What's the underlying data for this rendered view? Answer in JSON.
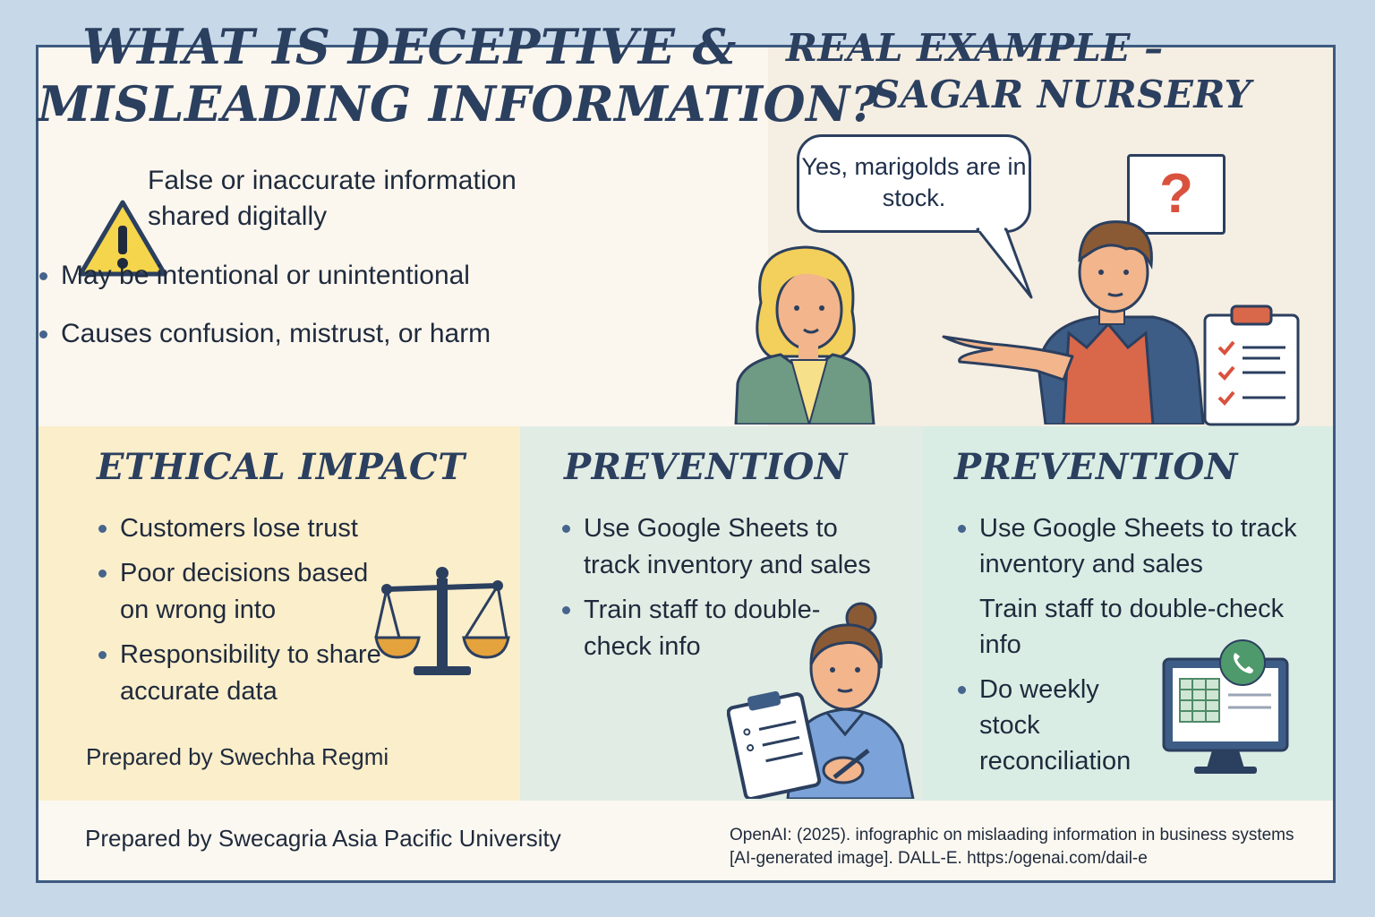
{
  "main": {
    "title_line1": "WHAT IS DECEPTIVE &",
    "title_line2": "MISLEADING INFORMATION?",
    "warning_text": "False or inaccurate information shared digitally",
    "bullets": [
      "May be intentional or unintentional",
      "Causes confusion, mistrust, or harm"
    ]
  },
  "example": {
    "title_line1": "REAL EXAMPLE –",
    "title_line2": "SAGAR NURSERY",
    "speech": "Yes, marigolds are in stock.",
    "question_mark": "?"
  },
  "ethical": {
    "title": "ETHICAL IMPACT",
    "bullets": [
      "Customers lose trust",
      "Poor decisions based on wrong into",
      "Responsibility to share accurate data"
    ],
    "prepared": "Prepared by Swechha Regmi"
  },
  "prevention1": {
    "title": "PREVENTION",
    "bullets": [
      "Use Google Sheets to track inventory and sales",
      "Train staff to double-check info"
    ]
  },
  "prevention2": {
    "title": "PREVENTION",
    "items": [
      "Use Google Sheets to track inventory and sales",
      "Train staff to double-check info",
      "Do weekly stock reconciliation"
    ]
  },
  "footer": {
    "prepared": "Prepared by Swecagria Asia Pacific University",
    "citation": "OpenAI: (2025). infographic on mislaading information in business systems [AI-generated image]. DALL-E. https:/ogenai.com/dail-e"
  },
  "colors": {
    "background": "#c7d8e8",
    "frame": "#3d5a80",
    "title": "#2b3f5f",
    "warning": "#f4d54b",
    "ethical_bg": "#fbeecb",
    "prevention_bg": "#e1ece4",
    "accent_red": "#d9523e"
  },
  "icons": [
    "warning-icon",
    "woman-customer-illustration",
    "shopkeeper-illustration",
    "clipboard-icon",
    "scales-icon",
    "staff-with-clipboard-illustration",
    "spreadsheet-monitor-icon",
    "phone-badge-icon"
  ]
}
